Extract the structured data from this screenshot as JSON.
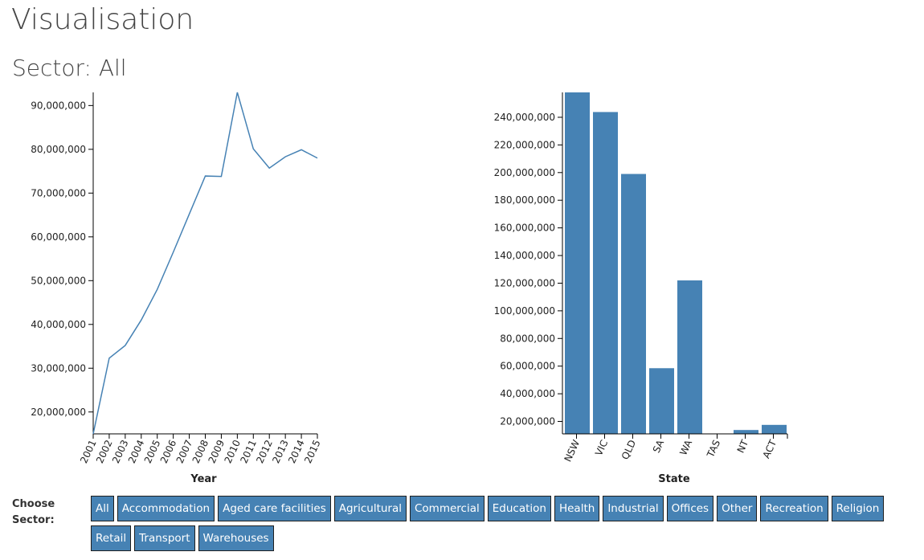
{
  "page": {
    "title": "Visualisation",
    "sector_prefix": "Sector: ",
    "sector_value": "All",
    "sector_heading": "Sector: All"
  },
  "controls": {
    "label": "Choose Sector:",
    "buttons": [
      "All",
      "Accommodation",
      "Aged care facilities",
      "Agricultural",
      "Commercial",
      "Education",
      "Health",
      "Industrial",
      "Offices",
      "Other",
      "Recreation",
      "Religion",
      "Retail",
      "Transport",
      "Warehouses"
    ]
  },
  "colors": {
    "line": "#4682b4",
    "bar": "#4682b4",
    "axis": "#000000"
  },
  "chart_data": [
    {
      "type": "line",
      "xlabel": "Year",
      "ylabel": "",
      "x": [
        "2001",
        "2002",
        "2003",
        "2004",
        "2005",
        "2006",
        "2007",
        "2008",
        "2009",
        "2010",
        "2011",
        "2012",
        "2013",
        "2014",
        "2015"
      ],
      "series": [
        {
          "values": [
            15000000,
            32300000,
            35200000,
            41000000,
            48000000,
            56500000,
            65200000,
            73900000,
            73800000,
            93000000,
            80100000,
            75700000,
            78300000,
            79900000,
            78000000
          ]
        }
      ],
      "ylim": [
        15000000,
        93000000
      ],
      "yticks": [
        20000000,
        30000000,
        40000000,
        50000000,
        60000000,
        70000000,
        80000000,
        90000000
      ],
      "ytick_labels": [
        "20,000,000",
        "30,000,000",
        "40,000,000",
        "50,000,000",
        "60,000,000",
        "70,000,000",
        "80,000,000",
        "90,000,000"
      ]
    },
    {
      "type": "bar",
      "xlabel": "State",
      "ylabel": "",
      "categories": [
        "NSW",
        "VIC",
        "QLD",
        "SA",
        "WA",
        "TAS",
        "NT",
        "ACT"
      ],
      "values": [
        258000000,
        243800000,
        199000000,
        58500000,
        122000000,
        0,
        13800000,
        17500000
      ],
      "ylim": [
        11000000,
        258000000
      ],
      "yticks": [
        20000000,
        40000000,
        60000000,
        80000000,
        100000000,
        120000000,
        140000000,
        160000000,
        180000000,
        200000000,
        220000000,
        240000000
      ],
      "ytick_labels": [
        "20,000,000",
        "40,000,000",
        "60,000,000",
        "80,000,000",
        "100,000,000",
        "120,000,000",
        "140,000,000",
        "160,000,000",
        "180,000,000",
        "200,000,000",
        "220,000,000",
        "240,000,000"
      ]
    }
  ]
}
